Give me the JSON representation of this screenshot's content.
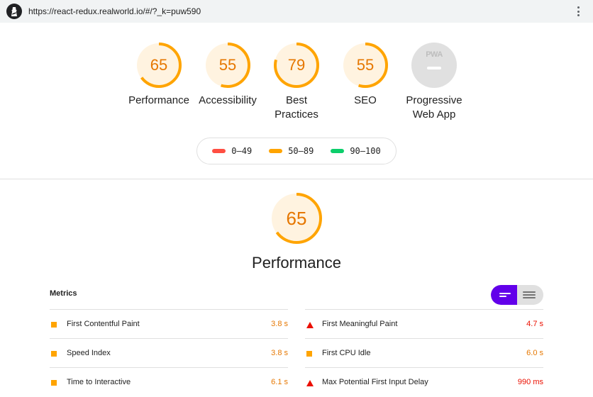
{
  "browser": {
    "url": "https://react-redux.realworld.io/#/?_k=puw590",
    "menu_icon": "kebab-menu-icon",
    "logo_icon": "lighthouse-logo-icon"
  },
  "gauges": [
    {
      "id": "performance",
      "score": "65",
      "label": "Performance",
      "value": 0.65,
      "color": "#ffa400"
    },
    {
      "id": "accessibility",
      "score": "55",
      "label": "Accessibility",
      "value": 0.55,
      "color": "#ffa400"
    },
    {
      "id": "best-practices",
      "score": "79",
      "label": "Best Practices",
      "value": 0.79,
      "color": "#ffa400"
    },
    {
      "id": "seo",
      "score": "55",
      "label": "SEO",
      "value": 0.55,
      "color": "#ffa400"
    },
    {
      "id": "pwa",
      "score": "",
      "label": "Progressive Web App",
      "badge_text": "PWA"
    }
  ],
  "legend": [
    {
      "range": "0–49",
      "color": "#ff4e42"
    },
    {
      "range": "50–89",
      "color": "#ffa400"
    },
    {
      "range": "90–100",
      "color": "#0cce6b"
    }
  ],
  "performance": {
    "score": "65",
    "value": 0.65,
    "title": "Performance",
    "metrics_header": "Metrics",
    "colors": {
      "average": "#ffa400",
      "fail": "#eb0f00",
      "toggle_active": "#6200ea"
    },
    "metrics_left": [
      {
        "name": "First Contentful Paint",
        "value": "3.8 s",
        "status": "average"
      },
      {
        "name": "Speed Index",
        "value": "3.8 s",
        "status": "average"
      },
      {
        "name": "Time to Interactive",
        "value": "6.1 s",
        "status": "average"
      }
    ],
    "metrics_right": [
      {
        "name": "First Meaningful Paint",
        "value": "4.7 s",
        "status": "fail"
      },
      {
        "name": "First CPU Idle",
        "value": "6.0 s",
        "status": "average"
      },
      {
        "name": "Max Potential First Input Delay",
        "value": "990 ms",
        "status": "fail"
      }
    ]
  }
}
